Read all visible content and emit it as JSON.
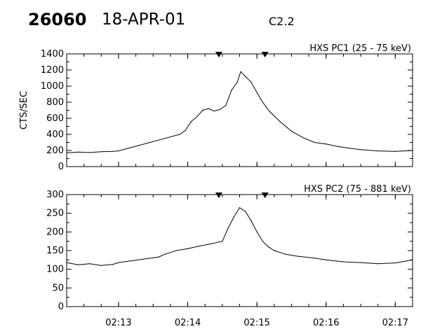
{
  "header": {
    "event_id": "26060",
    "date": "18-APR-01",
    "goes_class": "C2.2"
  },
  "chart_data": [
    {
      "type": "line",
      "title": "HXS PC1 (25 - 75 keV)",
      "ylabel": "CTS/SEC",
      "xlabel": "",
      "ylim": [
        0,
        1400
      ],
      "yticks": [
        "0",
        "200",
        "400",
        "600",
        "800",
        "1000",
        "1200",
        "1400"
      ],
      "xlim": [
        "02:12:15",
        "02:17:15"
      ],
      "xticks": [
        "02:13",
        "02:14",
        "02:15",
        "02:16",
        "02:17"
      ],
      "show_xtick_labels": false,
      "grid": false,
      "markers": [
        "02:14:27",
        "02:15:07"
      ],
      "series": [
        {
          "x": [
            "02:12:15",
            "02:12:25",
            "02:12:35",
            "02:12:45",
            "02:12:55",
            "02:13:00",
            "02:13:53",
            "02:13:58",
            "02:14:03",
            "02:14:08",
            "02:14:13",
            "02:14:18",
            "02:14:23",
            "02:14:28",
            "02:14:33",
            "02:14:38",
            "02:14:43",
            "02:14:46",
            "02:14:50",
            "02:14:55",
            "02:15:00",
            "02:15:05",
            "02:15:10",
            "02:15:15",
            "02:15:20",
            "02:15:25",
            "02:15:30",
            "02:15:40",
            "02:15:50",
            "02:16:00",
            "02:16:10",
            "02:16:20",
            "02:16:30",
            "02:16:45",
            "02:17:00",
            "02:17:15"
          ],
          "values": [
            170,
            180,
            175,
            185,
            190,
            195,
            400,
            450,
            560,
            620,
            700,
            720,
            690,
            710,
            760,
            950,
            1050,
            1180,
            1120,
            1050,
            920,
            800,
            700,
            630,
            560,
            500,
            440,
            360,
            300,
            280,
            250,
            230,
            210,
            195,
            190,
            200
          ]
        }
      ]
    },
    {
      "type": "line",
      "title": "HXS PC2 (75 - 881 keV)",
      "ylabel": "",
      "xlabel": "",
      "ylim": [
        0,
        300
      ],
      "yticks": [
        "0",
        "50",
        "100",
        "150",
        "200",
        "250",
        "300"
      ],
      "xlim": [
        "02:12:15",
        "02:17:15"
      ],
      "xticks": [
        "02:13",
        "02:14",
        "02:15",
        "02:16",
        "02:17"
      ],
      "show_xtick_labels": true,
      "grid": false,
      "markers": [
        "02:14:27",
        "02:15:07"
      ],
      "series": [
        {
          "x": [
            "02:12:15",
            "02:12:25",
            "02:12:35",
            "02:12:45",
            "02:12:55",
            "02:13:00",
            "02:13:35",
            "02:13:40",
            "02:13:50",
            "02:14:00",
            "02:14:10",
            "02:14:20",
            "02:14:30",
            "02:14:35",
            "02:14:40",
            "02:14:45",
            "02:14:50",
            "02:14:55",
            "02:15:00",
            "02:15:05",
            "02:15:10",
            "02:15:15",
            "02:15:25",
            "02:15:35",
            "02:15:50",
            "02:16:00",
            "02:16:15",
            "02:16:30",
            "02:16:45",
            "02:17:00",
            "02:17:15"
          ],
          "values": [
            118,
            112,
            115,
            110,
            113,
            118,
            133,
            140,
            150,
            155,
            162,
            168,
            175,
            210,
            240,
            265,
            255,
            230,
            200,
            175,
            160,
            150,
            140,
            135,
            130,
            125,
            120,
            118,
            115,
            117,
            125
          ]
        }
      ]
    }
  ]
}
